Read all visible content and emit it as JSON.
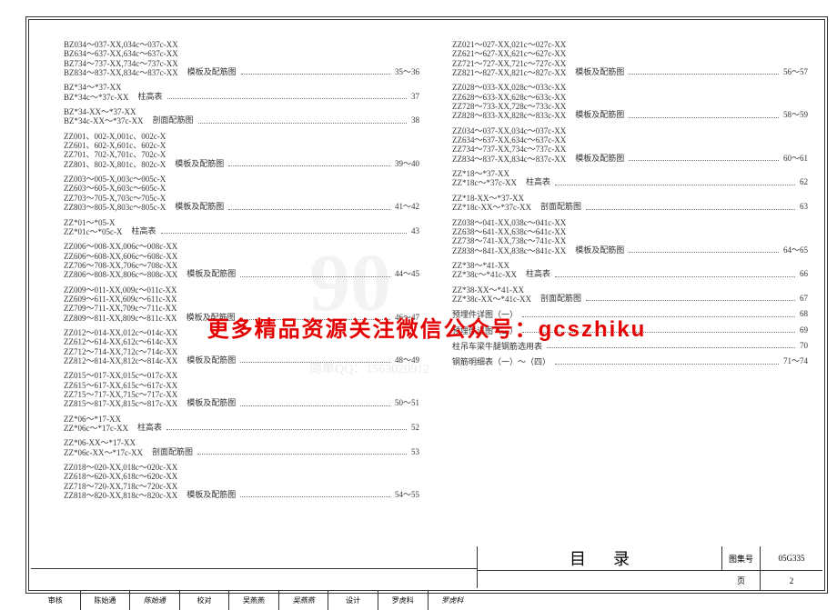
{
  "watermark_text": "更多精品资源关注微信公众号：gcszhiku",
  "watermark_bg": "90",
  "watermark_qq": "简单QQ：1563020912",
  "title_block": {
    "title": "目录",
    "set_label": "图集号",
    "set_no": "05G335",
    "page_label": "页",
    "page_no": "2",
    "审核": "审核",
    "审核v": "陈始通",
    "校对": "校对",
    "校对v": "吴燕燕",
    "设计": "设计",
    "设计v": "罗虎科"
  },
  "left": [
    {
      "codes": "BZ034～037-XX,034c～037c-XX\nBZ634～637-XX,634c～637c-XX\nBZ734～737-XX,734c～737c-XX\nBZ834～837-XX,834c～837c-XX",
      "desc": "模板及配筋图",
      "page": "35～36"
    },
    {
      "codes": "BZ*34～*37-XX\nBZ*34c～*37c-XX",
      "desc": "柱高表",
      "page": "37"
    },
    {
      "codes": "BZ*34-XX～*37-XX\nBZ*34c-XX～*37c-XX",
      "desc": "剖面配筋图",
      "page": "38"
    },
    {
      "codes": "ZZ001、002-X,001c、002c-X\nZZ601、602-X,601c、602c-X\nZZ701、702-X,701c、702c-X\nZZ801、802-X,801c、802c-X",
      "desc": "模板及配筋图",
      "page": "39～40"
    },
    {
      "codes": "ZZ003～005-X,003c～005c-X\nZZ603～605-X,603c～605c-X\nZZ703～705-X,703c～705c-X\nZZ803～805-X,803c～805c-X",
      "desc": "模板及配筋图",
      "page": "41～42"
    },
    {
      "codes": "ZZ*01～*05-X\nZZ*01c～*05c-X",
      "desc": "柱高表",
      "page": "43"
    },
    {
      "codes": "ZZ006～008-XX,006c～008c-XX\nZZ606～608-XX,606c～608c-XX\nZZ706～708-XX,706c～708c-XX\nZZ806～808-XX,806c～808c-XX",
      "desc": "模板及配筋图",
      "page": "44～45"
    },
    {
      "codes": "ZZ009～011-XX,009c～011c-XX\nZZ609～611-XX,609c～611c-XX\nZZ709～711-XX,709c～711c-XX\nZZ809～811-XX,809c～811c-XX",
      "desc": "模板及配筋图",
      "page": "46～47"
    },
    {
      "codes": "ZZ012～014-XX,012c～014c-XX\nZZ612～614-XX,612c～614c-XX\nZZ712～714-XX,712c～714c-XX\nZZ812～814-XX,812c～814c-XX",
      "desc": "模板及配筋图",
      "page": "48～49"
    },
    {
      "codes": "ZZ015～017-XX,015c～017c-XX\nZZ615～617-XX,615c～617c-XX\nZZ715～717-XX,715c～717c-XX\nZZ815～817-XX,815c～817c-XX",
      "desc": "模板及配筋图",
      "page": "50～51"
    },
    {
      "codes": "ZZ*06～*17-XX\nZZ*06c～*17c-XX",
      "desc": "柱高表",
      "page": "52"
    },
    {
      "codes": "ZZ*06-XX～*17-XX\nZZ*06c-XX～*17c-XX",
      "desc": "剖面配筋图",
      "page": "53"
    },
    {
      "codes": "ZZ018～020-XX,018c～020c-XX\nZZ618～620-XX,618c～620c-XX\nZZ718～720-XX,718c～720c-XX\nZZ818～820-XX,818c～820c-XX",
      "desc": "模板及配筋图",
      "page": "54～55"
    }
  ],
  "right": [
    {
      "codes": "ZZ021～027-XX,021c～027c-XX\nZZ621～627-XX,621c～627c-XX\nZZ721～727-XX,721c～727c-XX\nZZ821～827-XX,821c～827c-XX",
      "desc": "模板及配筋图",
      "page": "56～57"
    },
    {
      "codes": "ZZ028～033-XX,028c～033c-XX\nZZ628～633-XX,628c～633c-XX\nZZ728～733-XX,728c～733c-XX\nZZ828～833-XX,828c～833c-XX",
      "desc": "模板及配筋图",
      "page": "58～59"
    },
    {
      "codes": "ZZ034～037-XX,034c～037c-XX\nZZ634～637-XX,634c～637c-XX\nZZ734～737-XX,734c～737c-XX\nZZ834～837-XX,834c～837c-XX",
      "desc": "模板及配筋图",
      "page": "60～61"
    },
    {
      "codes": "ZZ*18～*37-XX\nZZ*18c～*37c-XX",
      "desc": "柱高表",
      "page": "62"
    },
    {
      "codes": "ZZ*18-XX～*37-XX\nZZ*18c-XX～*37c-XX",
      "desc": "剖面配筋图",
      "page": "63"
    },
    {
      "codes": "ZZ038～041-XX,038c～041c-XX\nZZ638～641-XX,638c～641c-XX\nZZ738～741-XX,738c～741c-XX\nZZ838～841-XX,838c～841c-XX",
      "desc": "模板及配筋图",
      "page": "64～65"
    },
    {
      "codes": "ZZ*38～*41-XX\nZZ*38c～*41c-XX",
      "desc": "柱高表",
      "page": "66"
    },
    {
      "codes": "ZZ*38-XX～*41-XX\nZZ*38c-XX～*41c-XX",
      "desc": "剖面配筋图",
      "page": "67"
    }
  ],
  "right_simple": [
    {
      "label": "预埋件详图（一）",
      "page": "68"
    },
    {
      "label": "预埋件详图（二）",
      "page": "69"
    },
    {
      "label": "柱吊车梁牛腿钢筋选用表",
      "page": "70"
    },
    {
      "label": "钢筋明细表（一）～（四）",
      "page": "71～74"
    }
  ]
}
